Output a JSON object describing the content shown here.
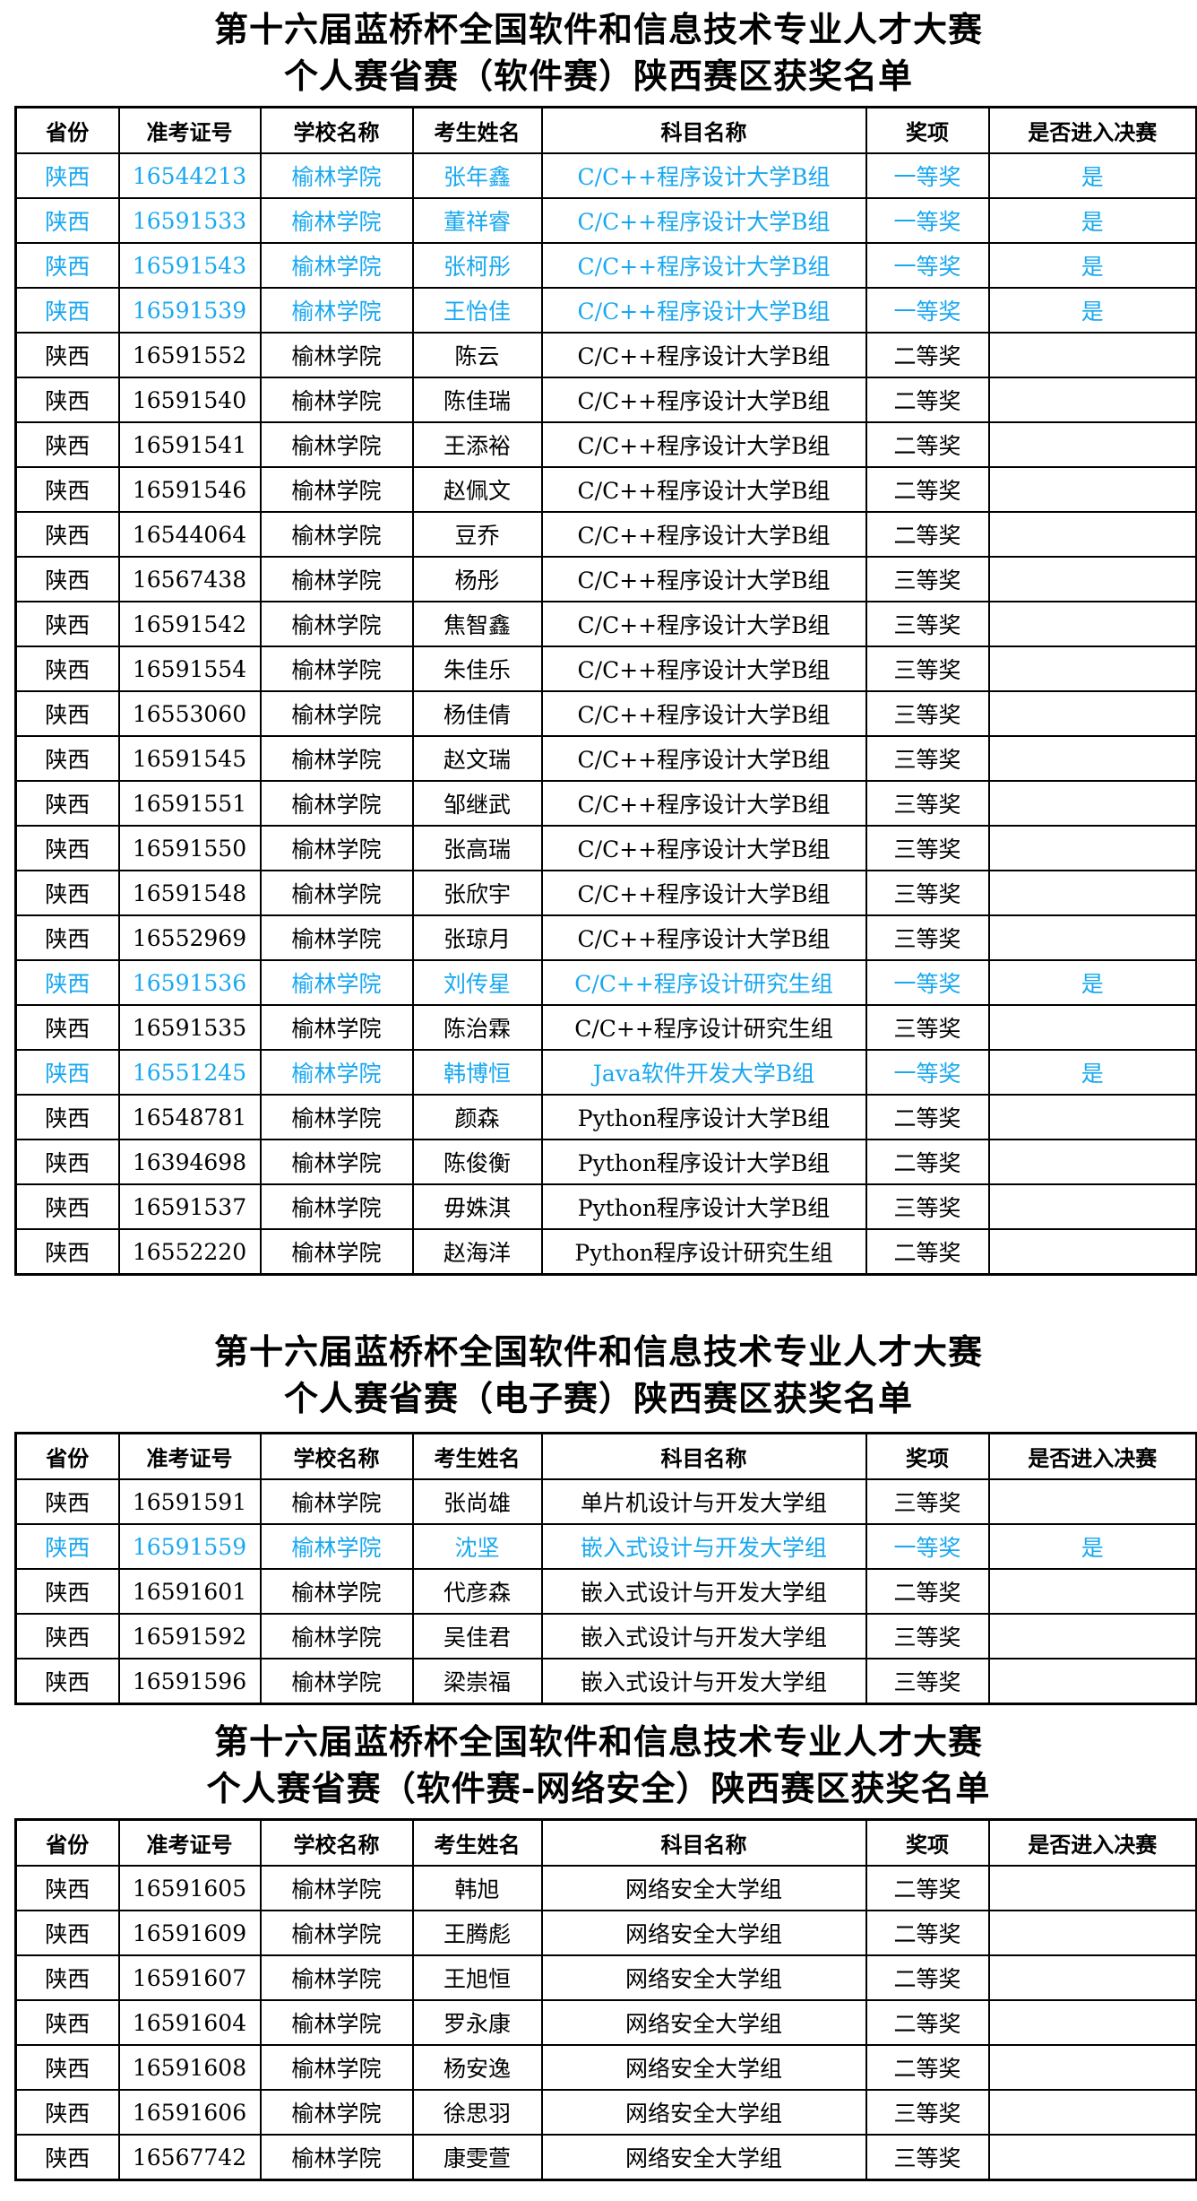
{
  "colors": {
    "highlight": "#19a8f0",
    "text": "#000000"
  },
  "headers": [
    "省份",
    "准考证号",
    "学校名称",
    "考生姓名",
    "科目名称",
    "奖项",
    "是否进入决赛"
  ],
  "sections": [
    {
      "title_line1": "第十六届蓝桥杯全国软件和信息技术专业人才大赛",
      "title_line2": "个人赛省赛（软件赛）陕西赛区获奖名单",
      "rows": [
        [
          "陕西",
          "16544213",
          "榆林学院",
          "张年鑫",
          "C/C++程序设计大学B组",
          "一等奖",
          "是"
        ],
        [
          "陕西",
          "16591533",
          "榆林学院",
          "董祥睿",
          "C/C++程序设计大学B组",
          "一等奖",
          "是"
        ],
        [
          "陕西",
          "16591543",
          "榆林学院",
          "张柯彤",
          "C/C++程序设计大学B组",
          "一等奖",
          "是"
        ],
        [
          "陕西",
          "16591539",
          "榆林学院",
          "王怡佳",
          "C/C++程序设计大学B组",
          "一等奖",
          "是"
        ],
        [
          "陕西",
          "16591552",
          "榆林学院",
          "陈云",
          "C/C++程序设计大学B组",
          "二等奖",
          ""
        ],
        [
          "陕西",
          "16591540",
          "榆林学院",
          "陈佳瑞",
          "C/C++程序设计大学B组",
          "二等奖",
          ""
        ],
        [
          "陕西",
          "16591541",
          "榆林学院",
          "王添裕",
          "C/C++程序设计大学B组",
          "二等奖",
          ""
        ],
        [
          "陕西",
          "16591546",
          "榆林学院",
          "赵佩文",
          "C/C++程序设计大学B组",
          "二等奖",
          ""
        ],
        [
          "陕西",
          "16544064",
          "榆林学院",
          "豆乔",
          "C/C++程序设计大学B组",
          "二等奖",
          ""
        ],
        [
          "陕西",
          "16567438",
          "榆林学院",
          "杨彤",
          "C/C++程序设计大学B组",
          "三等奖",
          ""
        ],
        [
          "陕西",
          "16591542",
          "榆林学院",
          "焦智鑫",
          "C/C++程序设计大学B组",
          "三等奖",
          ""
        ],
        [
          "陕西",
          "16591554",
          "榆林学院",
          "朱佳乐",
          "C/C++程序设计大学B组",
          "三等奖",
          ""
        ],
        [
          "陕西",
          "16553060",
          "榆林学院",
          "杨佳倩",
          "C/C++程序设计大学B组",
          "三等奖",
          ""
        ],
        [
          "陕西",
          "16591545",
          "榆林学院",
          "赵文瑞",
          "C/C++程序设计大学B组",
          "三等奖",
          ""
        ],
        [
          "陕西",
          "16591551",
          "榆林学院",
          "邹继武",
          "C/C++程序设计大学B组",
          "三等奖",
          ""
        ],
        [
          "陕西",
          "16591550",
          "榆林学院",
          "张高瑞",
          "C/C++程序设计大学B组",
          "三等奖",
          ""
        ],
        [
          "陕西",
          "16591548",
          "榆林学院",
          "张欣宇",
          "C/C++程序设计大学B组",
          "三等奖",
          ""
        ],
        [
          "陕西",
          "16552969",
          "榆林学院",
          "张琼月",
          "C/C++程序设计大学B组",
          "三等奖",
          ""
        ],
        [
          "陕西",
          "16591536",
          "榆林学院",
          "刘传星",
          "C/C++程序设计研究生组",
          "一等奖",
          "是"
        ],
        [
          "陕西",
          "16591535",
          "榆林学院",
          "陈治霖",
          "C/C++程序设计研究生组",
          "三等奖",
          ""
        ],
        [
          "陕西",
          "16551245",
          "榆林学院",
          "韩博恒",
          "Java软件开发大学B组",
          "一等奖",
          "是"
        ],
        [
          "陕西",
          "16548781",
          "榆林学院",
          "颜森",
          "Python程序设计大学B组",
          "二等奖",
          ""
        ],
        [
          "陕西",
          "16394698",
          "榆林学院",
          "陈俊衡",
          "Python程序设计大学B组",
          "二等奖",
          ""
        ],
        [
          "陕西",
          "16591537",
          "榆林学院",
          "毋姝淇",
          "Python程序设计大学B组",
          "三等奖",
          ""
        ],
        [
          "陕西",
          "16552220",
          "榆林学院",
          "赵海洋",
          "Python程序设计研究生组",
          "二等奖",
          ""
        ]
      ]
    },
    {
      "title_line1": "第十六届蓝桥杯全国软件和信息技术专业人才大赛",
      "title_line2": "个人赛省赛（电子赛）陕西赛区获奖名单",
      "rows": [
        [
          "陕西",
          "16591591",
          "榆林学院",
          "张尚雄",
          "单片机设计与开发大学组",
          "三等奖",
          ""
        ],
        [
          "陕西",
          "16591559",
          "榆林学院",
          "沈坚",
          "嵌入式设计与开发大学组",
          "一等奖",
          "是"
        ],
        [
          "陕西",
          "16591601",
          "榆林学院",
          "代彦森",
          "嵌入式设计与开发大学组",
          "二等奖",
          ""
        ],
        [
          "陕西",
          "16591592",
          "榆林学院",
          "吴佳君",
          "嵌入式设计与开发大学组",
          "三等奖",
          ""
        ],
        [
          "陕西",
          "16591596",
          "榆林学院",
          "梁崇福",
          "嵌入式设计与开发大学组",
          "三等奖",
          ""
        ]
      ]
    },
    {
      "title_line1": "第十六届蓝桥杯全国软件和信息技术专业人才大赛",
      "title_line2": "个人赛省赛（软件赛-网络安全）陕西赛区获奖名单",
      "rows": [
        [
          "陕西",
          "16591605",
          "榆林学院",
          "韩旭",
          "网络安全大学组",
          "二等奖",
          ""
        ],
        [
          "陕西",
          "16591609",
          "榆林学院",
          "王腾彪",
          "网络安全大学组",
          "二等奖",
          ""
        ],
        [
          "陕西",
          "16591607",
          "榆林学院",
          "王旭恒",
          "网络安全大学组",
          "二等奖",
          ""
        ],
        [
          "陕西",
          "16591604",
          "榆林学院",
          "罗永康",
          "网络安全大学组",
          "二等奖",
          ""
        ],
        [
          "陕西",
          "16591608",
          "榆林学院",
          "杨安逸",
          "网络安全大学组",
          "二等奖",
          ""
        ],
        [
          "陕西",
          "16591606",
          "榆林学院",
          "徐思羽",
          "网络安全大学组",
          "三等奖",
          ""
        ],
        [
          "陕西",
          "16567742",
          "榆林学院",
          "康雯萱",
          "网络安全大学组",
          "三等奖",
          ""
        ]
      ]
    }
  ]
}
